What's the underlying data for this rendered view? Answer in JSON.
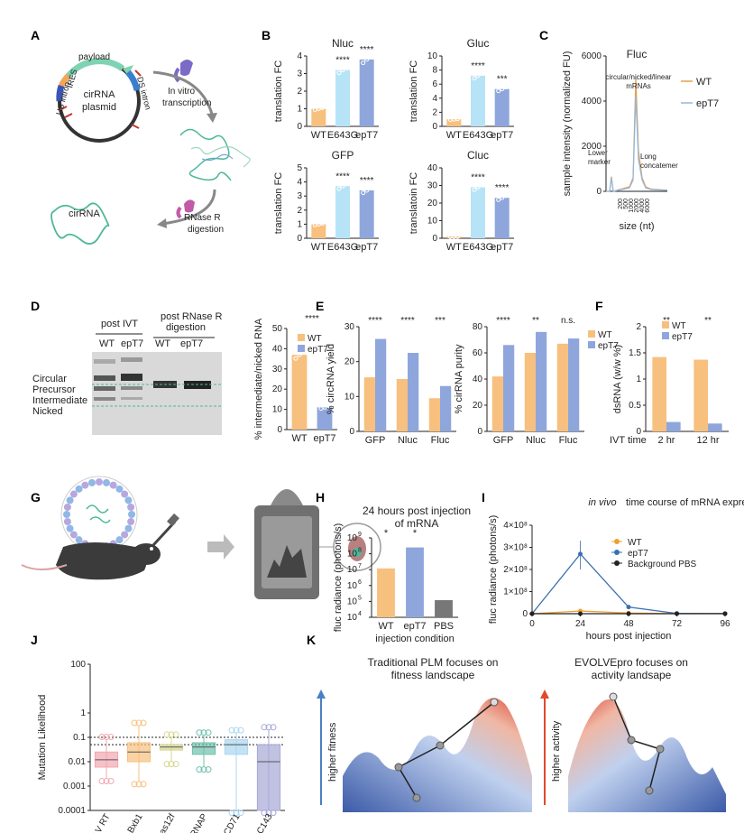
{
  "figure": {
    "panels": {
      "A": {
        "label": "A",
        "items": {
          "payload": "payload",
          "us_intron": "US intron",
          "ires": "IRES",
          "ds_intron": "DS intron",
          "plasmid": "cirRNA plasmid",
          "ivt": "In vitro transcription",
          "rnase": "RNase R digestion",
          "product": "cirRNA"
        }
      },
      "B": {
        "label": "B"
      },
      "C": {
        "label": "C"
      },
      "D": {
        "label": "D",
        "post_ivt": "post IVT",
        "post_rnase": "post RNase R digestion",
        "lane_wt": "WT",
        "lane_ept7": "epT7",
        "band_circular": "Circular",
        "band_precursor": "Precursor",
        "band_intermediate": "Intermediate",
        "band_nicked": "Nicked"
      },
      "E": {
        "label": "E"
      },
      "F": {
        "label": "F"
      },
      "G": {
        "label": "G"
      },
      "H": {
        "label": "H"
      },
      "I": {
        "label": "I"
      },
      "J": {
        "label": "J"
      },
      "K": {
        "label": "K",
        "title_left_1": "Traditional PLM focuses on",
        "title_left_2": "fitness landscape",
        "title_right_1": "EVOLVEpro focuses on",
        "title_right_2": "activity landsape",
        "axis_left": "higher fitness",
        "axis_right": "higher activity"
      }
    }
  },
  "chart_data": [
    {
      "id": "B-Nluc",
      "type": "bar",
      "title": "Nluc",
      "ylabel": "translation FC",
      "categories": [
        "WT",
        "E643G",
        "epT7"
      ],
      "values": [
        1.0,
        3.2,
        3.8
      ],
      "ylim": [
        0,
        4
      ],
      "yticks": [
        0,
        1,
        2,
        3,
        4
      ],
      "significance": [
        "",
        "****",
        "****"
      ]
    },
    {
      "id": "B-Gluc",
      "type": "bar",
      "title": "Gluc",
      "ylabel": "translation FC",
      "categories": [
        "WT",
        "E643G",
        "epT7"
      ],
      "values": [
        1.0,
        7.2,
        5.3
      ],
      "ylim": [
        0,
        10
      ],
      "yticks": [
        0,
        2,
        4,
        6,
        8,
        10
      ],
      "significance": [
        "",
        "****",
        "***"
      ]
    },
    {
      "id": "B-GFP",
      "type": "bar",
      "title": "GFP",
      "ylabel": "translation FC",
      "categories": [
        "WT",
        "E643G",
        "epT7"
      ],
      "values": [
        1.0,
        3.7,
        3.4
      ],
      "ylim": [
        0,
        5
      ],
      "yticks": [
        0,
        1,
        2,
        3,
        4,
        5
      ],
      "significance": [
        "",
        "****",
        "****"
      ]
    },
    {
      "id": "B-Cluc",
      "type": "bar",
      "title": "Cluc",
      "ylabel": "translatoin FC",
      "categories": [
        "WT",
        "E643G",
        "epT7"
      ],
      "values": [
        1.0,
        29,
        23
      ],
      "ylim": [
        0,
        40
      ],
      "yticks": [
        0,
        10,
        20,
        30,
        40
      ],
      "significance": [
        "",
        "****",
        "****"
      ]
    },
    {
      "id": "C",
      "type": "line",
      "title": "Fluc",
      "xlabel": "size (nt)",
      "ylabel": "sample intensity (normalized FU)",
      "ylim": [
        0,
        6000
      ],
      "yticks": [
        0,
        2000,
        4000,
        6000
      ],
      "xticks": [
        "200",
        "500",
        "1000",
        "2000",
        "4000",
        "6000"
      ],
      "series": [
        {
          "name": "WT"
        },
        {
          "name": "epT7"
        }
      ],
      "annotations": [
        "circular/nicked/linear mRNAs",
        "Lower marker",
        "Long concatemer"
      ],
      "legend": "right"
    },
    {
      "id": "D",
      "type": "bar",
      "ylabel": "% intermediate/nicked RNA",
      "categories": [
        "WT",
        "epT7"
      ],
      "values": [
        37,
        11
      ],
      "ylim": [
        0,
        50
      ],
      "yticks": [
        0,
        10,
        20,
        30,
        40,
        50
      ],
      "significance": "****",
      "series": [
        {
          "name": "WT"
        },
        {
          "name": "epT7"
        }
      ],
      "legend": "top-left"
    },
    {
      "id": "E-yield",
      "type": "bar",
      "ylabel": "% circRNA yield",
      "categories": [
        "GFP",
        "Nluc",
        "Fluc"
      ],
      "series": [
        {
          "name": "WT",
          "values": [
            15.5,
            15,
            9.5
          ]
        },
        {
          "name": "epT7",
          "values": [
            26.5,
            22.5,
            13
          ]
        }
      ],
      "ylim": [
        0,
        30
      ],
      "yticks": [
        0,
        10,
        20,
        30
      ],
      "significance": [
        "****",
        "****",
        "***"
      ]
    },
    {
      "id": "E-purity",
      "type": "bar",
      "ylabel": "% cirRNA purity",
      "categories": [
        "GFP",
        "Nluc",
        "Fluc"
      ],
      "series": [
        {
          "name": "WT",
          "values": [
            42,
            60,
            67
          ]
        },
        {
          "name": "epT7",
          "values": [
            66,
            76,
            71
          ]
        }
      ],
      "ylim": [
        0,
        80
      ],
      "yticks": [
        0,
        20,
        40,
        60,
        80
      ],
      "significance": [
        "****",
        "**",
        "n.s."
      ],
      "legend": "top-right"
    },
    {
      "id": "F",
      "type": "bar",
      "ylabel": "dsRNA (w/w %)",
      "xlabel": "IVT time",
      "categories": [
        "2 hr",
        "12 hr"
      ],
      "series": [
        {
          "name": "WT",
          "values": [
            1.42,
            1.37
          ]
        },
        {
          "name": "epT7",
          "values": [
            0.18,
            0.15
          ]
        }
      ],
      "ylim": [
        0,
        2.0
      ],
      "yticks": [
        0.0,
        0.5,
        1.0,
        1.5,
        2.0
      ],
      "significance": [
        "**",
        "**"
      ],
      "legend": "top-right"
    },
    {
      "id": "H",
      "type": "bar",
      "title": "24 hours post injection of mRNA",
      "ylabel": "fluc radiance (photons/s)",
      "xlabel": "injection condition",
      "categories": [
        "WT",
        "epT7",
        "PBS"
      ],
      "values": [
        12000000,
        250000000,
        120000
      ],
      "log_exponents": [
        4,
        5,
        6,
        7,
        8,
        9
      ],
      "significance": [
        "*",
        "*",
        ""
      ]
    },
    {
      "id": "I",
      "type": "line",
      "title": "in vivo time course of mRNA expression",
      "xlabel": "hours post injection",
      "ylabel": "fluc radiance (photons/s)",
      "x": [
        0,
        24,
        48,
        72,
        96
      ],
      "xticks": [
        0,
        24,
        48,
        72,
        96
      ],
      "yticks": [
        "0",
        "1×10⁸",
        "2×10⁸",
        "3×10⁸",
        "4×10⁸"
      ],
      "ylim": [
        0,
        400000000
      ],
      "series": [
        {
          "name": "WT",
          "values": [
            0,
            12000000,
            3000000,
            500000,
            500000
          ]
        },
        {
          "name": "epT7",
          "values": [
            0,
            270000000,
            30000000,
            1000000,
            500000
          ]
        },
        {
          "name": "Background PBS",
          "values": [
            0,
            120000,
            120000,
            120000,
            120000
          ]
        }
      ],
      "legend": "top-right"
    },
    {
      "id": "J",
      "type": "box",
      "ylabel": "Mutation Likelihood",
      "categories": [
        "MLV RT",
        "Bxb1",
        "cas12f",
        "T7 RNAP",
        "CD71",
        "C143"
      ],
      "yticks": [
        "0.0001",
        "0.001",
        "0.01",
        "0.1",
        "1",
        "100"
      ],
      "ylog": [
        -4,
        2
      ]
    }
  ]
}
